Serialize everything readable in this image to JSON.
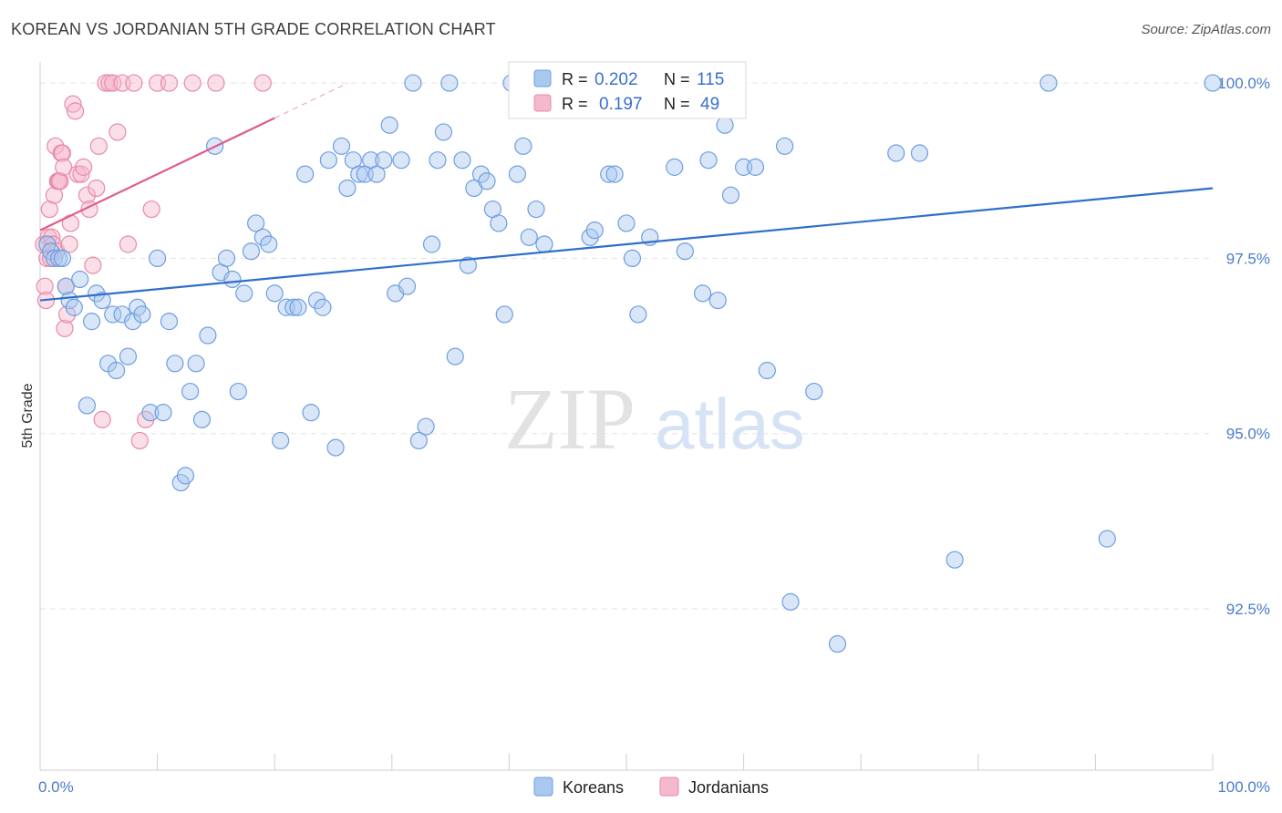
{
  "title": "KOREAN VS JORDANIAN 5TH GRADE CORRELATION CHART",
  "source": "Source: ZipAtlas.com",
  "watermark": {
    "zip": "ZIP",
    "atlas": "atlas"
  },
  "colors": {
    "korean_fill": "#a9c8f0",
    "korean_stroke": "#6e9ee0",
    "korean_line": "#2f6fcc",
    "jordanian_fill": "#f6b8cb",
    "jordanian_stroke": "#e88aa8",
    "jordanian_line": "#e05c8a",
    "grid": "#e3e3e3",
    "axis_text": "#4a7cc9"
  },
  "chart_data": {
    "type": "scatter",
    "xlabel": "",
    "ylabel": "5th Grade",
    "xlim": [
      0,
      100
    ],
    "ylim": [
      90.2,
      100.3
    ],
    "x_ticks": [
      "0.0%",
      "100.0%"
    ],
    "y_ticks": [
      {
        "value": 92.5,
        "label": "92.5%"
      },
      {
        "value": 95.0,
        "label": "95.0%"
      },
      {
        "value": 97.5,
        "label": "97.5%"
      },
      {
        "value": 100.0,
        "label": "100.0%"
      }
    ],
    "legend_stats": [
      {
        "series": "Koreans",
        "r_label": "R =",
        "r": "0.202",
        "n_label": "N =",
        "n": "115"
      },
      {
        "series": "Jordanians",
        "r_label": "R =",
        "r": "0.197",
        "n_label": "N =",
        "n": "49"
      }
    ],
    "series": [
      {
        "name": "Koreans",
        "trend": {
          "x0": 0,
          "y0": 96.9,
          "x1": 100,
          "y1": 98.5
        },
        "points": [
          [
            0.6,
            97.7
          ],
          [
            0.9,
            97.6
          ],
          [
            1.2,
            97.5
          ],
          [
            1.6,
            97.5
          ],
          [
            1.9,
            97.5
          ],
          [
            2.2,
            97.1
          ],
          [
            2.5,
            96.9
          ],
          [
            2.9,
            96.8
          ],
          [
            3.4,
            97.2
          ],
          [
            4.0,
            95.4
          ],
          [
            4.4,
            96.6
          ],
          [
            4.8,
            97.0
          ],
          [
            5.3,
            96.9
          ],
          [
            5.8,
            96.0
          ],
          [
            6.2,
            96.7
          ],
          [
            6.5,
            95.9
          ],
          [
            7.0,
            96.7
          ],
          [
            7.5,
            96.1
          ],
          [
            7.9,
            96.6
          ],
          [
            8.3,
            96.8
          ],
          [
            8.7,
            96.7
          ],
          [
            9.4,
            95.3
          ],
          [
            10.0,
            97.5
          ],
          [
            10.5,
            95.3
          ],
          [
            11.0,
            96.6
          ],
          [
            11.5,
            96.0
          ],
          [
            12.0,
            94.3
          ],
          [
            12.4,
            94.4
          ],
          [
            12.8,
            95.6
          ],
          [
            13.3,
            96.0
          ],
          [
            13.8,
            95.2
          ],
          [
            14.3,
            96.4
          ],
          [
            14.9,
            99.1
          ],
          [
            15.4,
            97.3
          ],
          [
            15.9,
            97.5
          ],
          [
            16.4,
            97.2
          ],
          [
            16.9,
            95.6
          ],
          [
            17.4,
            97.0
          ],
          [
            18.0,
            97.6
          ],
          [
            18.4,
            98.0
          ],
          [
            19.0,
            97.8
          ],
          [
            19.5,
            97.7
          ],
          [
            20.0,
            97.0
          ],
          [
            20.5,
            94.9
          ],
          [
            21.0,
            96.8
          ],
          [
            21.6,
            96.8
          ],
          [
            22.0,
            96.8
          ],
          [
            22.6,
            98.7
          ],
          [
            23.1,
            95.3
          ],
          [
            23.6,
            96.9
          ],
          [
            24.1,
            96.8
          ],
          [
            24.6,
            98.9
          ],
          [
            25.2,
            94.8
          ],
          [
            25.7,
            99.1
          ],
          [
            26.2,
            98.5
          ],
          [
            26.7,
            98.9
          ],
          [
            27.2,
            98.7
          ],
          [
            27.7,
            98.7
          ],
          [
            28.2,
            98.9
          ],
          [
            28.7,
            98.7
          ],
          [
            29.3,
            98.9
          ],
          [
            29.8,
            99.4
          ],
          [
            30.3,
            97.0
          ],
          [
            30.8,
            98.9
          ],
          [
            31.3,
            97.1
          ],
          [
            31.8,
            100.0
          ],
          [
            32.3,
            94.9
          ],
          [
            32.9,
            95.1
          ],
          [
            33.4,
            97.7
          ],
          [
            33.9,
            98.9
          ],
          [
            34.4,
            99.3
          ],
          [
            34.9,
            100.0
          ],
          [
            35.4,
            96.1
          ],
          [
            36.0,
            98.9
          ],
          [
            36.5,
            97.4
          ],
          [
            37.0,
            98.5
          ],
          [
            37.6,
            98.7
          ],
          [
            38.1,
            98.6
          ],
          [
            38.6,
            98.2
          ],
          [
            39.1,
            98.0
          ],
          [
            39.6,
            96.7
          ],
          [
            40.2,
            100.0
          ],
          [
            40.7,
            98.7
          ],
          [
            41.2,
            99.1
          ],
          [
            41.7,
            97.8
          ],
          [
            42.3,
            98.2
          ],
          [
            43.0,
            97.7
          ],
          [
            45.3,
            100.0
          ],
          [
            46.3,
            99.8
          ],
          [
            46.9,
            97.8
          ],
          [
            47.3,
            97.9
          ],
          [
            48.5,
            98.7
          ],
          [
            49.0,
            98.7
          ],
          [
            50.0,
            98.0
          ],
          [
            50.5,
            97.5
          ],
          [
            51.0,
            96.7
          ],
          [
            52.0,
            97.8
          ],
          [
            54.1,
            98.8
          ],
          [
            55.0,
            97.6
          ],
          [
            56.0,
            100.0
          ],
          [
            56.5,
            97.0
          ],
          [
            57.0,
            98.9
          ],
          [
            57.8,
            96.9
          ],
          [
            58.4,
            99.4
          ],
          [
            58.9,
            98.4
          ],
          [
            60.0,
            98.8
          ],
          [
            61.0,
            98.8
          ],
          [
            62.0,
            95.9
          ],
          [
            63.5,
            99.1
          ],
          [
            64.0,
            92.6
          ],
          [
            66.0,
            95.6
          ],
          [
            68.0,
            92.0
          ],
          [
            73.0,
            99.0
          ],
          [
            75.0,
            99.0
          ],
          [
            78.0,
            93.2
          ],
          [
            86.0,
            100.0
          ],
          [
            91.0,
            93.5
          ],
          [
            100.0,
            100.0
          ]
        ]
      },
      {
        "name": "Jordanians",
        "trend": {
          "x0": 0,
          "y0": 97.9,
          "x1": 20,
          "y1": 99.5
        },
        "points": [
          [
            0.3,
            97.7
          ],
          [
            0.4,
            97.1
          ],
          [
            0.5,
            96.9
          ],
          [
            0.6,
            97.5
          ],
          [
            0.7,
            97.8
          ],
          [
            0.8,
            98.2
          ],
          [
            0.9,
            97.5
          ],
          [
            1.0,
            97.8
          ],
          [
            1.1,
            97.7
          ],
          [
            1.2,
            98.4
          ],
          [
            1.3,
            99.1
          ],
          [
            1.4,
            97.6
          ],
          [
            1.5,
            98.6
          ],
          [
            1.6,
            98.6
          ],
          [
            1.7,
            98.6
          ],
          [
            1.8,
            99.0
          ],
          [
            1.9,
            99.0
          ],
          [
            2.0,
            98.8
          ],
          [
            2.1,
            96.5
          ],
          [
            2.2,
            97.1
          ],
          [
            2.3,
            96.7
          ],
          [
            2.5,
            97.7
          ],
          [
            2.6,
            98.0
          ],
          [
            2.8,
            99.7
          ],
          [
            3.0,
            99.6
          ],
          [
            3.2,
            98.7
          ],
          [
            3.5,
            98.7
          ],
          [
            3.7,
            98.8
          ],
          [
            4.0,
            98.4
          ],
          [
            4.2,
            98.2
          ],
          [
            4.5,
            97.4
          ],
          [
            4.8,
            98.5
          ],
          [
            5.0,
            99.1
          ],
          [
            5.3,
            95.2
          ],
          [
            5.6,
            100.0
          ],
          [
            5.9,
            100.0
          ],
          [
            6.2,
            100.0
          ],
          [
            6.6,
            99.3
          ],
          [
            7.0,
            100.0
          ],
          [
            7.5,
            97.7
          ],
          [
            8.0,
            100.0
          ],
          [
            8.5,
            94.9
          ],
          [
            9.0,
            95.2
          ],
          [
            9.5,
            98.2
          ],
          [
            10.0,
            100.0
          ],
          [
            11.0,
            100.0
          ],
          [
            13.0,
            100.0
          ],
          [
            15.0,
            100.0
          ],
          [
            19.0,
            100.0
          ]
        ]
      }
    ],
    "legend_placement": "top-center and bottom"
  }
}
